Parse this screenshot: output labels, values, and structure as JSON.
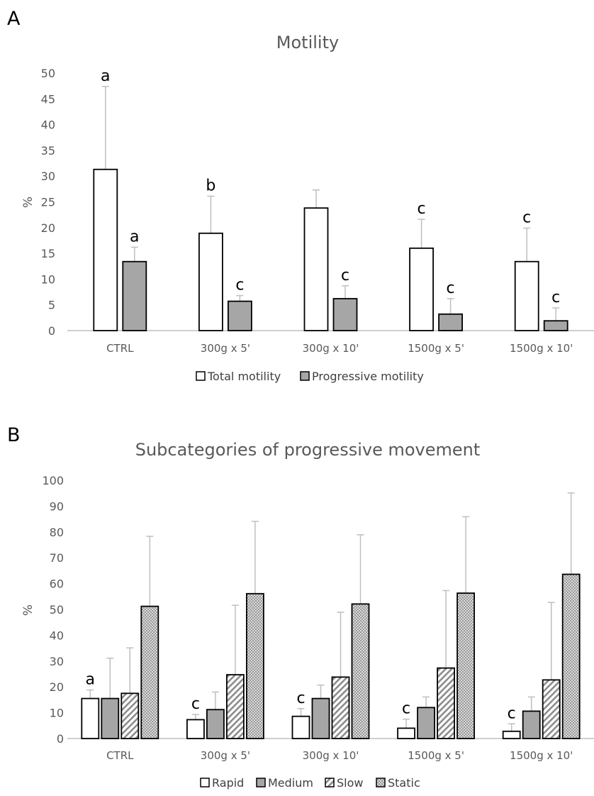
{
  "colors": {
    "white_fill": "#ffffff",
    "gray_fill": "#a6a6a6",
    "bar_stroke": "#000000",
    "error_bar": "#bfbfbf",
    "axis": "#bfbfbf",
    "text": "#595959"
  },
  "chart_data": [
    {
      "panel": "A",
      "type": "bar",
      "title": "Motility",
      "ylabel": "%",
      "ylim": [
        0,
        50
      ],
      "yticks": [
        0,
        5,
        10,
        15,
        20,
        25,
        30,
        35,
        40,
        45,
        50
      ],
      "grid": false,
      "legend_position": "bottom",
      "categories": [
        "CTRL",
        "300g x 5'",
        "300g x 10'",
        "1500g x 5'",
        "1500g x 10'"
      ],
      "series": [
        {
          "name": "Total motility",
          "pattern": "white",
          "values": [
            31.3,
            18.9,
            23.8,
            16.0,
            13.4
          ],
          "errors": [
            16.1,
            7.2,
            3.5,
            5.6,
            6.5
          ],
          "labels": [
            "a",
            "b",
            "",
            "c",
            "c"
          ]
        },
        {
          "name": "Progressive motility",
          "pattern": "gray",
          "values": [
            13.4,
            5.7,
            6.2,
            3.2,
            1.9
          ],
          "errors": [
            2.8,
            1.1,
            2.5,
            3.0,
            2.5
          ],
          "labels": [
            "a",
            "c",
            "c",
            "c",
            "c"
          ]
        }
      ]
    },
    {
      "panel": "B",
      "type": "bar",
      "title": "Subcategories of progressive movement",
      "ylabel": "%",
      "ylim": [
        0,
        100
      ],
      "yticks": [
        0,
        10,
        20,
        30,
        40,
        50,
        60,
        70,
        80,
        90,
        100
      ],
      "grid": false,
      "legend_position": "bottom",
      "categories": [
        "CTRL",
        "300g x 5'",
        "300g x 10'",
        "1500g x 5'",
        "1500g x 10'"
      ],
      "series": [
        {
          "name": "Rapid",
          "pattern": "white",
          "values": [
            15.5,
            7.3,
            8.6,
            4.0,
            2.8
          ],
          "errors": [
            3.3,
            2.0,
            3.0,
            3.5,
            2.9
          ],
          "labels": [
            "a",
            "c",
            "c",
            "c",
            "c"
          ]
        },
        {
          "name": "Medium",
          "pattern": "gray",
          "values": [
            15.5,
            11.2,
            15.5,
            12.0,
            10.6
          ],
          "errors": [
            15.6,
            6.8,
            5.2,
            4.1,
            5.5
          ],
          "labels": [
            "",
            "",
            "",
            "",
            ""
          ]
        },
        {
          "name": "Slow",
          "pattern": "diagonal",
          "values": [
            17.5,
            24.7,
            23.8,
            27.3,
            22.7
          ],
          "errors": [
            17.6,
            26.9,
            25.1,
            30.0,
            30.0
          ],
          "labels": [
            "",
            "",
            "",
            "",
            ""
          ]
        },
        {
          "name": "Static",
          "pattern": "dots",
          "values": [
            51.2,
            56.1,
            52.1,
            56.3,
            63.6
          ],
          "errors": [
            27.1,
            28.0,
            26.8,
            29.6,
            31.5
          ],
          "labels": [
            "",
            "",
            "",
            "",
            ""
          ]
        }
      ]
    }
  ]
}
